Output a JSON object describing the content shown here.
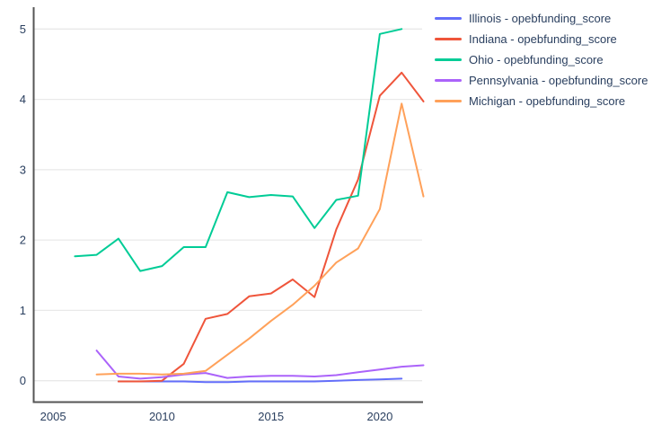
{
  "chart_data": {
    "type": "line",
    "title": "",
    "xlabel": "",
    "ylabel": "",
    "grid": true,
    "legend_position": "right",
    "x_ticks": [
      2005,
      2010,
      2015,
      2020
    ],
    "y_ticks": [
      0,
      1,
      2,
      3,
      4,
      5
    ],
    "xlim": [
      2004.13,
      2021.94
    ],
    "ylim": [
      -0.31,
      5.31
    ],
    "series": [
      {
        "name": "Illinois - opebfunding_score",
        "color": "#636EFA",
        "x": [
          2008,
          2009,
          2010,
          2011,
          2012,
          2013,
          2014,
          2015,
          2016,
          2017,
          2018,
          2019,
          2020,
          2021
        ],
        "y": [
          -0.01,
          -0.01,
          -0.01,
          -0.01,
          -0.02,
          -0.02,
          -0.01,
          -0.01,
          -0.01,
          -0.01,
          0.0,
          0.01,
          0.02,
          0.03
        ]
      },
      {
        "name": "Indiana - opebfunding_score",
        "color": "#EF553B",
        "x": [
          2008,
          2009,
          2010,
          2011,
          2012,
          2013,
          2014,
          2015,
          2016,
          2017,
          2018,
          2019,
          2020,
          2021,
          2022
        ],
        "y": [
          -0.01,
          -0.01,
          0.0,
          0.24,
          0.88,
          0.95,
          1.2,
          1.24,
          1.44,
          1.19,
          2.15,
          2.86,
          4.05,
          4.38,
          3.97
        ]
      },
      {
        "name": "Ohio - opebfunding_score",
        "color": "#00CC96",
        "x": [
          2006,
          2007,
          2008,
          2009,
          2010,
          2011,
          2012,
          2013,
          2014,
          2015,
          2016,
          2017,
          2018,
          2019,
          2020,
          2021
        ],
        "y": [
          1.77,
          1.79,
          2.02,
          1.56,
          1.63,
          1.9,
          1.9,
          2.68,
          2.61,
          2.64,
          2.62,
          2.17,
          2.57,
          2.63,
          4.93,
          5.0
        ]
      },
      {
        "name": "Pennsylvania - opebfunding_score",
        "color": "#AB63FA",
        "x": [
          2007,
          2008,
          2009,
          2010,
          2011,
          2012,
          2013,
          2014,
          2015,
          2016,
          2017,
          2018,
          2019,
          2020,
          2021,
          2022
        ],
        "y": [
          0.43,
          0.06,
          0.03,
          0.05,
          0.09,
          0.11,
          0.04,
          0.06,
          0.07,
          0.07,
          0.06,
          0.08,
          0.12,
          0.16,
          0.2,
          0.22
        ]
      },
      {
        "name": "Michigan - opebfunding_score",
        "color": "#FFA15A",
        "x": [
          2007,
          2008,
          2009,
          2010,
          2011,
          2012,
          2013,
          2014,
          2015,
          2016,
          2017,
          2018,
          2019,
          2020,
          2021,
          2022
        ],
        "y": [
          0.09,
          0.1,
          0.1,
          0.09,
          0.1,
          0.14,
          0.37,
          0.6,
          0.85,
          1.08,
          1.35,
          1.68,
          1.88,
          2.44,
          3.94,
          2.62
        ]
      }
    ]
  },
  "colors": {
    "background": "#ffffff",
    "grid": "#e9e9e9",
    "axis": "#555555",
    "text": "#2a3f5f"
  }
}
